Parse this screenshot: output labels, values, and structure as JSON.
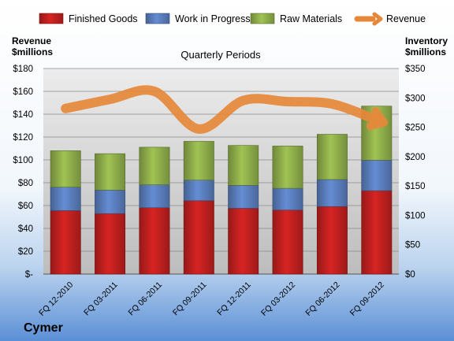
{
  "company": "Cymer",
  "chart_data": {
    "type": "bar",
    "stacked": true,
    "title": "Quarterly Periods",
    "categories": [
      "FQ 12-2010",
      "FQ 03-2011",
      "FQ 06-2011",
      "FQ 09-2011",
      "FQ 12-2011",
      "FQ 03-2012",
      "FQ 06-2012",
      "FQ 09-2012"
    ],
    "series": [
      {
        "name": "Finished Goods",
        "axis": "right",
        "color": "#c0201f",
        "values": [
          108,
          103,
          113,
          125,
          112,
          109,
          115,
          142
        ]
      },
      {
        "name": "Work in Progress",
        "axis": "right",
        "color": "#5a7ebd",
        "values": [
          40,
          40,
          39,
          35,
          39,
          37,
          46,
          52
        ]
      },
      {
        "name": "Raw Materials",
        "axis": "right",
        "color": "#8fae4a",
        "values": [
          62,
          62,
          64,
          66,
          68,
          72,
          77,
          92
        ]
      },
      {
        "name": "Revenue",
        "type": "line",
        "axis": "left",
        "color": "#e6883a",
        "values": [
          145,
          153,
          160,
          127,
          152,
          151,
          149,
          135
        ]
      }
    ],
    "left_axis": {
      "label": [
        "Revenue",
        "$millions"
      ],
      "min": 0,
      "max": 180,
      "step": 20,
      "tick_labels": [
        "$-",
        "$20",
        "$40",
        "$60",
        "$80",
        "$100",
        "$120",
        "$140",
        "$160",
        "$180"
      ]
    },
    "right_axis": {
      "label": [
        "Inventory",
        "$millions"
      ],
      "min": 0,
      "max": 350,
      "step": 50,
      "tick_labels": [
        "$0",
        "$50",
        "$100",
        "$150",
        "$200",
        "$250",
        "$300",
        "$350"
      ]
    },
    "legend": "top",
    "grid": true
  }
}
